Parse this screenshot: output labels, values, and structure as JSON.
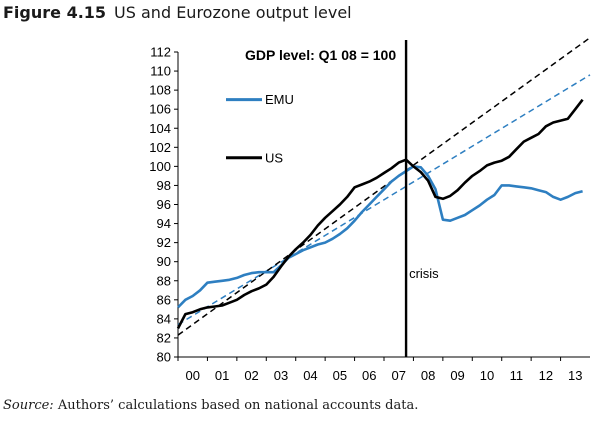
{
  "figure": {
    "number": "Figure 4.15",
    "title": "US and Eurozone output level"
  },
  "source": {
    "label": "Source:",
    "text": "Authors’ calculations based on national accounts data."
  },
  "chart_data": {
    "type": "line",
    "title": "GDP level: Q1 08 = 100",
    "xlabel": "",
    "ylabel": "",
    "x_tick_labels": [
      "00",
      "01",
      "02",
      "03",
      "04",
      "05",
      "06",
      "07",
      "08",
      "09",
      "10",
      "11",
      "12",
      "13"
    ],
    "y_ticks": [
      80,
      82,
      84,
      86,
      88,
      90,
      92,
      94,
      96,
      98,
      100,
      102,
      104,
      106,
      108,
      110,
      112
    ],
    "xlim": [
      2000,
      2014
    ],
    "ylim": [
      80,
      112
    ],
    "grid": false,
    "legend_position": "upper-left",
    "annotation": {
      "text": "crisis",
      "x": 2007.75
    },
    "colors": {
      "EMU": "#2e7fc1",
      "US": "#000000",
      "trend_EMU": "#2e7fc1",
      "trend_US": "#000000",
      "crisis_line": "#000000"
    },
    "series": [
      {
        "name": "EMU",
        "style": "solid",
        "x": [
          2000,
          2000.25,
          2000.5,
          2000.75,
          2001,
          2001.25,
          2001.5,
          2001.75,
          2002,
          2002.25,
          2002.5,
          2002.75,
          2003,
          2003.25,
          2003.5,
          2003.75,
          2004,
          2004.25,
          2004.5,
          2004.75,
          2005,
          2005.25,
          2005.5,
          2005.75,
          2006,
          2006.25,
          2006.5,
          2006.75,
          2007,
          2007.25,
          2007.5,
          2007.75,
          2008,
          2008.25,
          2008.5,
          2008.75,
          2009,
          2009.25,
          2009.5,
          2009.75,
          2010,
          2010.25,
          2010.5,
          2010.75,
          2011,
          2011.25,
          2011.5,
          2011.75,
          2012,
          2012.25,
          2012.5,
          2012.75,
          2013,
          2013.25,
          2013.5,
          2013.75
        ],
        "values": [
          85.2,
          86.0,
          86.4,
          87.0,
          87.8,
          87.9,
          88.0,
          88.1,
          88.3,
          88.6,
          88.8,
          88.9,
          88.9,
          88.9,
          89.6,
          90.4,
          90.8,
          91.2,
          91.5,
          91.8,
          92.0,
          92.4,
          92.9,
          93.5,
          94.3,
          95.2,
          96.0,
          96.8,
          97.6,
          98.4,
          99.0,
          99.5,
          100.0,
          99.9,
          99.0,
          97.6,
          94.4,
          94.3,
          94.6,
          94.9,
          95.4,
          95.9,
          96.5,
          97.0,
          98.0,
          98.0,
          97.9,
          97.8,
          97.7,
          97.5,
          97.3,
          96.8,
          96.5,
          96.8,
          97.2,
          97.4
        ]
      },
      {
        "name": "US",
        "style": "solid",
        "x": [
          2000,
          2000.25,
          2000.5,
          2000.75,
          2001,
          2001.25,
          2001.5,
          2001.75,
          2002,
          2002.25,
          2002.5,
          2002.75,
          2003,
          2003.25,
          2003.5,
          2003.75,
          2004,
          2004.25,
          2004.5,
          2004.75,
          2005,
          2005.25,
          2005.5,
          2005.75,
          2006,
          2006.25,
          2006.5,
          2006.75,
          2007,
          2007.25,
          2007.5,
          2007.75,
          2008,
          2008.25,
          2008.5,
          2008.75,
          2009,
          2009.25,
          2009.5,
          2009.75,
          2010,
          2010.25,
          2010.5,
          2010.75,
          2011,
          2011.25,
          2011.5,
          2011.75,
          2012,
          2012.25,
          2012.5,
          2012.75,
          2013,
          2013.25,
          2013.5,
          2013.75
        ],
        "values": [
          83.0,
          84.5,
          84.7,
          85.0,
          85.2,
          85.3,
          85.4,
          85.7,
          86.0,
          86.5,
          86.9,
          87.2,
          87.6,
          88.4,
          89.5,
          90.5,
          91.3,
          92.0,
          92.8,
          93.8,
          94.6,
          95.3,
          96.0,
          96.8,
          97.8,
          98.1,
          98.4,
          98.8,
          99.3,
          99.8,
          100.4,
          100.7,
          100.0,
          99.4,
          98.5,
          96.8,
          96.6,
          96.9,
          97.5,
          98.3,
          99.0,
          99.5,
          100.1,
          100.4,
          100.6,
          101.0,
          101.8,
          102.6,
          103.0,
          103.4,
          104.2,
          104.6,
          104.8,
          105.0,
          106.0,
          107.0
        ]
      },
      {
        "name": "",
        "style": "dashed",
        "x": [
          2000,
          2014
        ],
        "values": [
          83.4,
          109.6
        ]
      },
      {
        "name": "",
        "style": "dashed",
        "x": [
          2000,
          2014
        ],
        "values": [
          82.3,
          113.5
        ]
      }
    ]
  }
}
